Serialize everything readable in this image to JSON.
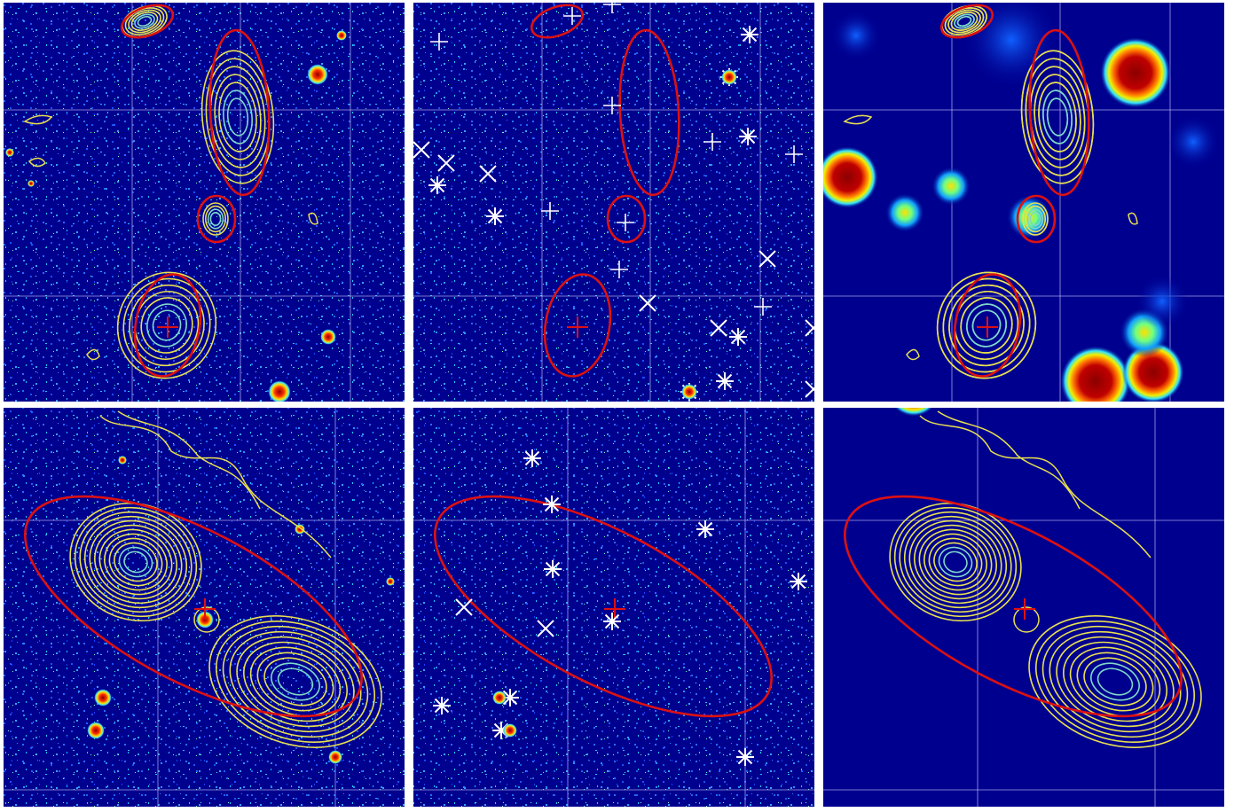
{
  "colors": {
    "background": "#00008f",
    "panel_border": "#ffffff",
    "grid": "#c8c8ff",
    "contour": "#e8e050",
    "region": "#dd1111",
    "marker": "#ffffff",
    "hot": "#8b0000"
  },
  "panels": [
    {
      "name": "top-optical-overlay",
      "kind": "optical-with-contours"
    },
    {
      "name": "top-catalogue-markers",
      "kind": "catalogue-markers"
    },
    {
      "name": "top-smoothed-overlay",
      "kind": "smoothed-with-contours"
    },
    {
      "name": "bottom-optical-overlay",
      "kind": "optical-with-contours"
    },
    {
      "name": "bottom-catalogue-markers",
      "kind": "catalogue-markers"
    },
    {
      "name": "bottom-smoothed-overlay",
      "kind": "smoothed-with-contours"
    }
  ]
}
